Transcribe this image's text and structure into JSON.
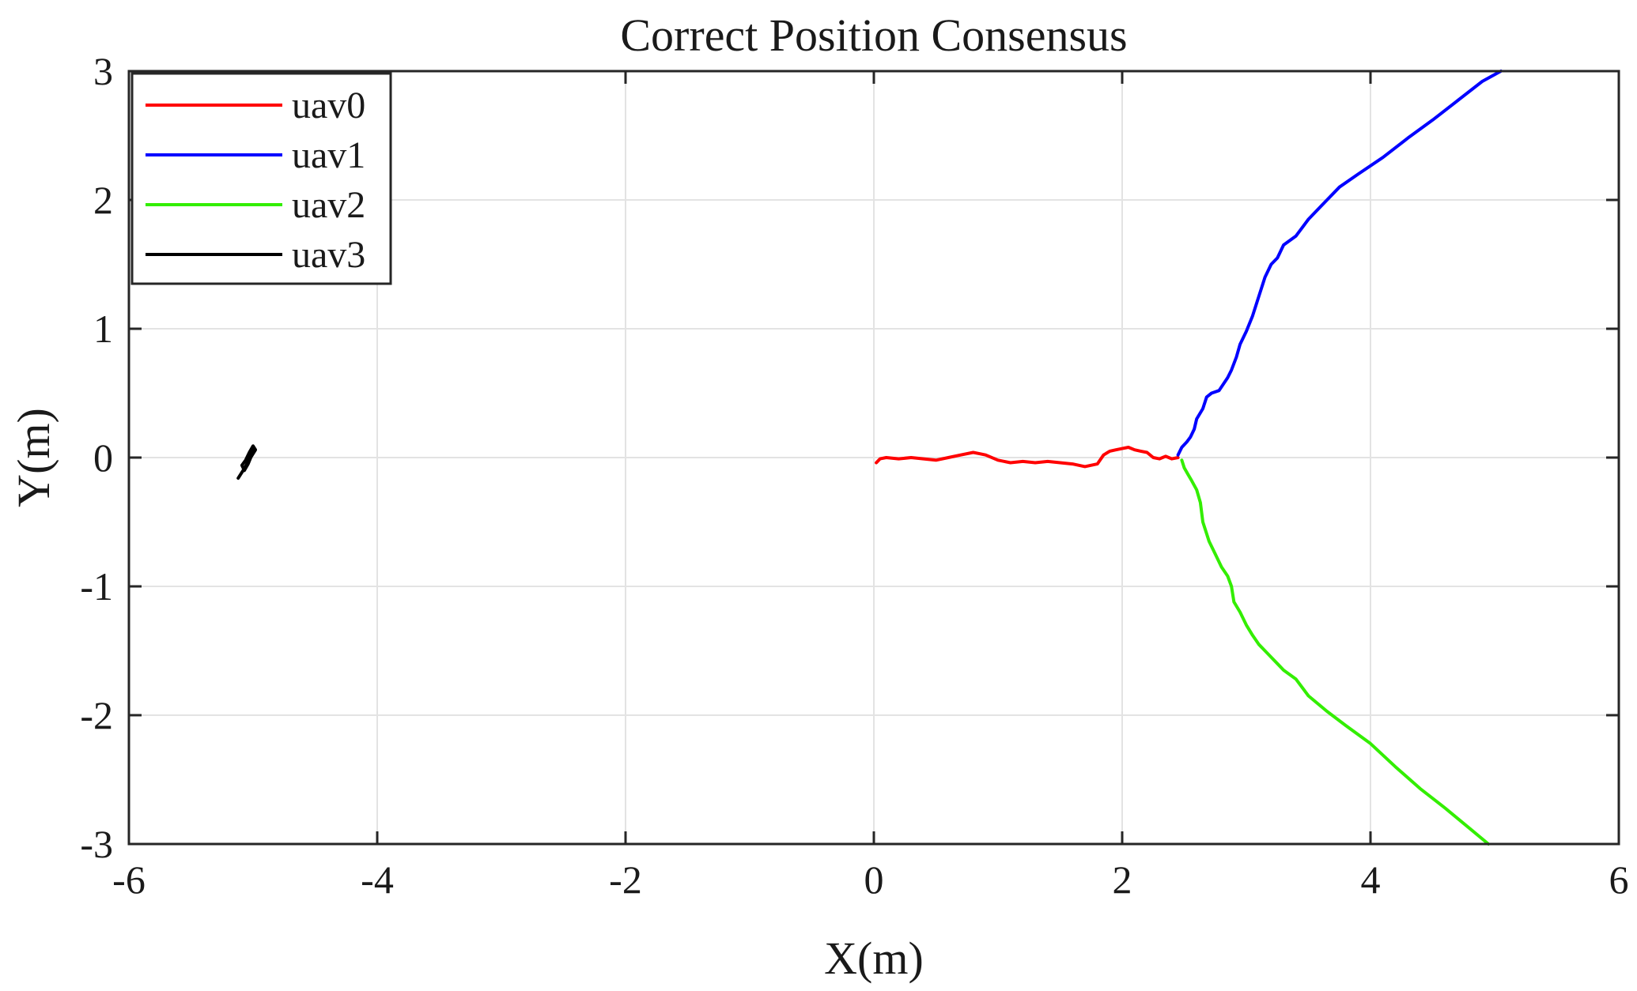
{
  "chart_data": {
    "type": "line",
    "title": "Correct Position Consensus",
    "xlabel": "X(m)",
    "ylabel": "Y(m)",
    "xlim": [
      -6,
      6
    ],
    "ylim": [
      -3,
      3
    ],
    "xticks": [
      -6,
      -4,
      -2,
      0,
      2,
      4,
      6
    ],
    "yticks": [
      -3,
      -2,
      -1,
      0,
      1,
      2,
      3
    ],
    "grid": true,
    "legend_position": "top-left",
    "series": [
      {
        "name": "uav0",
        "color": "#ff0000",
        "x": [
          0.02,
          0.05,
          0.1,
          0.2,
          0.3,
          0.4,
          0.5,
          0.6,
          0.7,
          0.8,
          0.85,
          0.9,
          1.0,
          1.1,
          1.2,
          1.3,
          1.4,
          1.5,
          1.6,
          1.7,
          1.8,
          1.85,
          1.9,
          1.95,
          2.0,
          2.05,
          2.1,
          2.15,
          2.2,
          2.25,
          2.3,
          2.35,
          2.4,
          2.45
        ],
        "y": [
          -0.04,
          -0.01,
          0.0,
          -0.01,
          0.0,
          -0.01,
          -0.02,
          0.0,
          0.02,
          0.04,
          0.03,
          0.02,
          -0.02,
          -0.04,
          -0.03,
          -0.04,
          -0.03,
          -0.04,
          -0.05,
          -0.07,
          -0.05,
          0.02,
          0.05,
          0.06,
          0.07,
          0.08,
          0.06,
          0.05,
          0.04,
          0.0,
          -0.01,
          0.01,
          -0.01,
          0.0
        ]
      },
      {
        "name": "uav1",
        "color": "#0000ff",
        "x": [
          2.45,
          2.48,
          2.52,
          2.55,
          2.58,
          2.6,
          2.65,
          2.68,
          2.72,
          2.78,
          2.85,
          2.88,
          2.92,
          2.95,
          3.0,
          3.05,
          3.1,
          3.15,
          3.2,
          3.25,
          3.3,
          3.4,
          3.5,
          3.6,
          3.75,
          3.9,
          4.1,
          4.3,
          4.5,
          4.7,
          4.9,
          5.05
        ],
        "y": [
          0.02,
          0.08,
          0.12,
          0.16,
          0.22,
          0.3,
          0.38,
          0.47,
          0.5,
          0.52,
          0.62,
          0.68,
          0.78,
          0.88,
          0.98,
          1.1,
          1.25,
          1.4,
          1.5,
          1.55,
          1.65,
          1.72,
          1.85,
          1.95,
          2.1,
          2.2,
          2.33,
          2.48,
          2.62,
          2.77,
          2.92,
          3.0
        ]
      },
      {
        "name": "uav2",
        "color": "#33ee00",
        "x": [
          2.48,
          2.5,
          2.53,
          2.56,
          2.6,
          2.63,
          2.65,
          2.7,
          2.75,
          2.8,
          2.85,
          2.88,
          2.9,
          2.95,
          3.0,
          3.05,
          3.1,
          3.15,
          3.2,
          3.25,
          3.3,
          3.4,
          3.5,
          3.65,
          3.8,
          4.0,
          4.2,
          4.4,
          4.6,
          4.8,
          4.95
        ],
        "y": [
          -0.02,
          -0.08,
          -0.13,
          -0.18,
          -0.25,
          -0.35,
          -0.5,
          -0.65,
          -0.75,
          -0.85,
          -0.92,
          -1.0,
          -1.12,
          -1.2,
          -1.3,
          -1.38,
          -1.45,
          -1.5,
          -1.55,
          -1.6,
          -1.65,
          -1.72,
          -1.85,
          -1.97,
          -2.08,
          -2.22,
          -2.4,
          -2.57,
          -2.72,
          -2.88,
          -3.0
        ]
      },
      {
        "name": "uav3",
        "color": "#000000",
        "x": [
          -5.12,
          -5.08,
          -5.05,
          -5.02,
          -4.98,
          -5.0,
          -5.03,
          -5.06,
          -5.09,
          -5.07,
          -5.04,
          -5.01,
          -5.0,
          -5.03
        ],
        "y": [
          -0.16,
          -0.1,
          -0.05,
          0.0,
          0.06,
          0.09,
          0.04,
          -0.02,
          -0.06,
          -0.1,
          -0.05,
          0.02,
          0.07,
          0.0
        ]
      }
    ]
  }
}
